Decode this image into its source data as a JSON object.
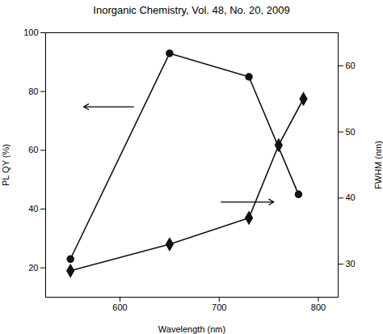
{
  "chart_data": {
    "type": "line",
    "title": "Inorganic Chemistry, Vol. 48, No. 20, 2009",
    "xlabel": "Wavelength (nm)",
    "ylabel": "PL QY (%)",
    "y2label": "FWHM (nm)",
    "series": [
      {
        "x": [
          550,
          650,
          730,
          780
        ],
        "values": [
          23,
          93,
          85,
          45
        ],
        "color": "#111111",
        "marker": "circle"
      },
      {
        "x": [
          550,
          650,
          730,
          760,
          785
        ],
        "values": [
          29,
          33,
          37,
          48,
          55
        ],
        "color": "#111111",
        "marker": "diamond",
        "axis": "y2"
      }
    ],
    "xlim": [
      525,
      820
    ],
    "ylim": [
      10,
      100
    ],
    "y2lim": [
      25,
      65
    ],
    "xticks": [
      600,
      700,
      800
    ],
    "yticks": [
      20,
      40,
      60,
      80,
      100
    ],
    "y2ticks": [
      30,
      40,
      50,
      60
    ],
    "grid": false
  }
}
